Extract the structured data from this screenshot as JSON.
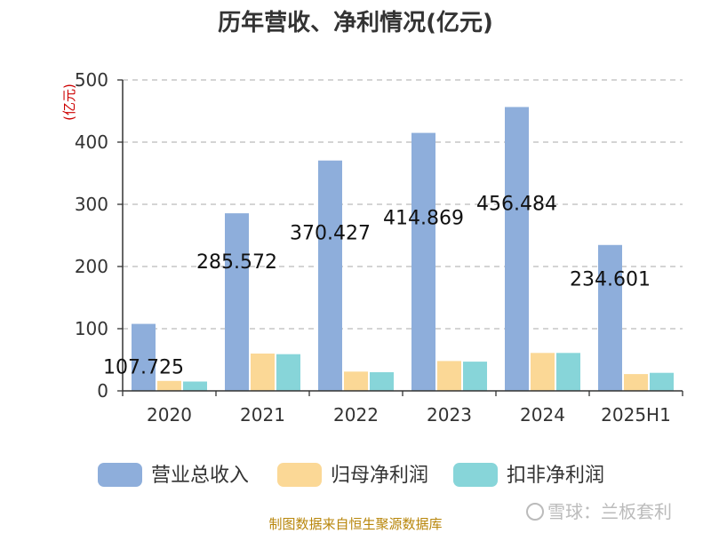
{
  "chart_data": {
    "type": "bar",
    "title": "历年营收、净利情况(亿元)",
    "ylabel": "(亿元)",
    "xlabel": "",
    "ylim": [
      0,
      500
    ],
    "yticks": [
      0,
      100,
      200,
      300,
      400,
      500
    ],
    "grid": true,
    "legend_position": "bottom",
    "categories": [
      "2020",
      "2021",
      "2022",
      "2023",
      "2024",
      "2025H1"
    ],
    "series": [
      {
        "name": "营业总收入",
        "color": "#8eaedb",
        "values": [
          107.725,
          285.572,
          370.427,
          414.869,
          456.484,
          234.601
        ],
        "labels": [
          "107.725",
          "285.572",
          "370.427",
          "414.869",
          "456.484",
          "234.601"
        ]
      },
      {
        "name": "归母净利润",
        "color": "#fbd896",
        "values": [
          16,
          60,
          31,
          48,
          61,
          27
        ]
      },
      {
        "name": "扣非净利润",
        "color": "#87d5d9",
        "values": [
          15,
          59,
          30,
          47,
          61,
          29
        ]
      }
    ]
  },
  "footer": {
    "source": "制图数据来自恒生聚源数据库",
    "watermark": "雪球：兰板套利"
  }
}
